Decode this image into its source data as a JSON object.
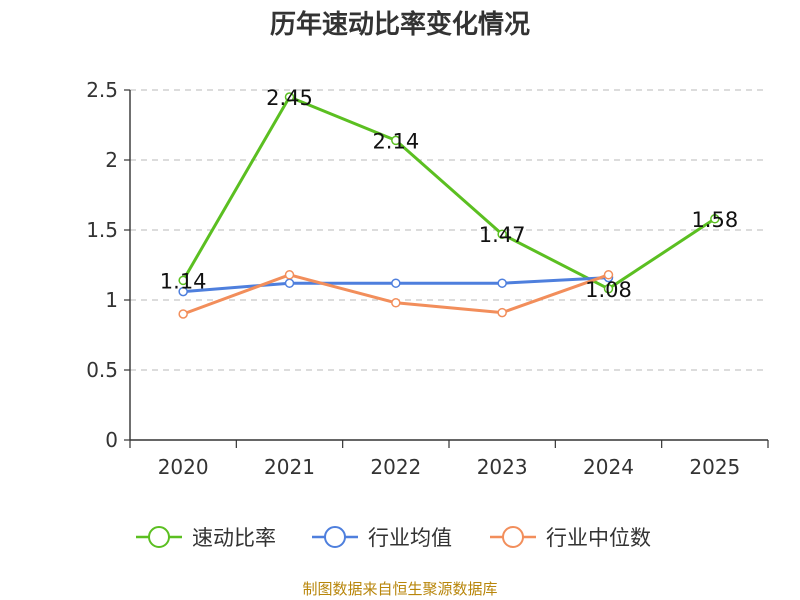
{
  "chart_data": {
    "type": "line",
    "title": "历年速动比率变化情况",
    "categories": [
      "2020",
      "2021",
      "2022",
      "2023",
      "2024",
      "2025"
    ],
    "ylim": [
      0,
      2.5
    ],
    "yticks": [
      "0",
      "0.5",
      "1",
      "1.5",
      "2",
      "2.5"
    ],
    "grid": true,
    "legend_position": "bottom",
    "series": [
      {
        "name": "速动比率",
        "color": "#5bbf21",
        "values": [
          1.14,
          2.45,
          2.14,
          1.47,
          1.08,
          1.58
        ],
        "labels": [
          "1.14",
          "2.45",
          "2.14",
          "1.47",
          "1.08",
          "1.58"
        ]
      },
      {
        "name": "行业均值",
        "color": "#4e7fdd",
        "values": [
          1.06,
          1.12,
          1.12,
          1.12,
          1.16,
          null
        ]
      },
      {
        "name": "行业中位数",
        "color": "#f28e5b",
        "values": [
          0.9,
          1.18,
          0.98,
          0.91,
          1.18,
          null
        ]
      }
    ]
  },
  "footer": {
    "source": "制图数据来自恒生聚源数据库"
  }
}
